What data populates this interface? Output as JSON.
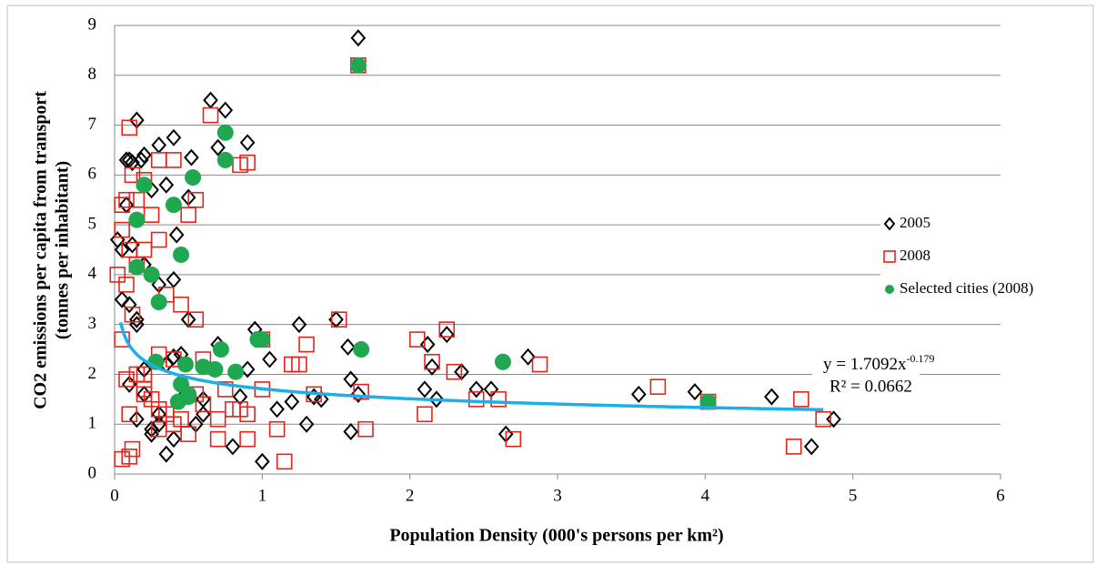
{
  "chart_data": {
    "type": "scatter",
    "x_label": "Population Density (000's persons per km²)",
    "y_label": [
      "CO2 emissions per capita from transport",
      "(tonnes per inhabitant)"
    ],
    "xlim": [
      0,
      6
    ],
    "xticks": [
      0,
      1,
      2,
      3,
      4,
      5,
      6
    ],
    "ylim": [
      0,
      9
    ],
    "yticks": [
      0,
      1,
      2,
      3,
      4,
      5,
      6,
      7,
      8,
      9
    ],
    "grid": true,
    "legend": "right",
    "series": [
      {
        "name": "2005",
        "color": "#000000",
        "marker": "diamond",
        "x": [
          0.02,
          0.05,
          0.08,
          0.1,
          0.12,
          0.15,
          0.18,
          0.2,
          0.25,
          0.3,
          0.35,
          0.4,
          0.42,
          0.5,
          0.52,
          0.65,
          0.7,
          0.75,
          0.9,
          0.08,
          0.12,
          0.15,
          0.2,
          0.3,
          0.4,
          0.5,
          0.05,
          0.1,
          0.15,
          0.2,
          0.35,
          0.4,
          0.45,
          0.3,
          0.25,
          1.65,
          1.0,
          1.05,
          1.25,
          1.5,
          1.58,
          1.6,
          1.65,
          2.1,
          2.12,
          2.15,
          2.18,
          2.25,
          2.35,
          2.45,
          2.55,
          2.65,
          2.8,
          3.55,
          3.93,
          4.45,
          4.72,
          4.87,
          1.6,
          0.8,
          0.6,
          0.7,
          0.9,
          1.1,
          1.2,
          1.3,
          1.35,
          0.35,
          0.4,
          0.25,
          0.55,
          0.15,
          0.1,
          0.45,
          0.6,
          0.85,
          1.4,
          0.95,
          0.2,
          0.3
        ],
        "values": [
          4.7,
          4.5,
          6.3,
          6.3,
          6.25,
          7.1,
          6.3,
          6.4,
          5.7,
          6.6,
          5.8,
          6.75,
          4.8,
          5.55,
          6.35,
          7.5,
          6.55,
          7.3,
          6.65,
          5.4,
          4.6,
          3.1,
          4.2,
          3.8,
          3.9,
          3.1,
          3.5,
          3.4,
          3.0,
          2.1,
          2.2,
          2.35,
          1.5,
          1.2,
          0.9,
          8.75,
          0.25,
          2.3,
          3.0,
          3.1,
          2.55,
          1.9,
          1.6,
          1.7,
          2.6,
          2.15,
          1.5,
          2.8,
          2.05,
          1.7,
          1.7,
          0.8,
          2.35,
          1.6,
          1.65,
          1.55,
          0.55,
          1.1,
          0.85,
          0.55,
          1.5,
          2.6,
          2.1,
          1.3,
          1.45,
          1.0,
          1.55,
          0.4,
          0.7,
          0.8,
          1.0,
          1.1,
          1.8,
          2.4,
          1.2,
          1.55,
          1.5,
          2.9,
          1.6,
          1.0
        ]
      },
      {
        "name": "2008",
        "color": "#e3241b",
        "marker": "square",
        "x": [
          0.02,
          0.05,
          0.08,
          0.1,
          0.12,
          0.15,
          0.2,
          0.25,
          0.3,
          0.4,
          0.5,
          0.55,
          0.65,
          0.85,
          0.9,
          0.05,
          0.1,
          0.15,
          0.2,
          0.3,
          0.35,
          0.45,
          0.55,
          0.08,
          0.12,
          0.2,
          0.3,
          0.4,
          0.05,
          0.1,
          0.2,
          0.3,
          0.4,
          0.5,
          0.6,
          0.7,
          0.8,
          0.9,
          1.0,
          1.1,
          1.15,
          1.25,
          1.35,
          1.52,
          1.65,
          1.7,
          2.05,
          2.1,
          2.15,
          2.25,
          2.3,
          2.45,
          2.6,
          2.7,
          2.88,
          3.68,
          4.02,
          4.6,
          4.65,
          4.8,
          0.05,
          0.1,
          0.2,
          0.3,
          0.45,
          0.6,
          0.75,
          0.9,
          1.0,
          1.2,
          0.25,
          0.35,
          0.15,
          0.55,
          0.7,
          0.85,
          1.3,
          1.67,
          0.08,
          0.12
        ],
        "values": [
          4.0,
          5.4,
          5.5,
          6.95,
          6.0,
          5.5,
          5.9,
          5.2,
          6.3,
          6.3,
          5.2,
          5.5,
          7.2,
          6.2,
          6.25,
          4.9,
          4.5,
          4.2,
          4.5,
          4.7,
          3.6,
          3.4,
          3.1,
          3.8,
          3.2,
          2.0,
          2.4,
          2.3,
          2.7,
          1.2,
          1.6,
          1.3,
          1.0,
          0.8,
          1.4,
          1.1,
          1.3,
          0.7,
          1.7,
          0.9,
          0.25,
          2.2,
          1.6,
          3.1,
          8.2,
          0.9,
          2.7,
          1.2,
          2.25,
          2.9,
          2.05,
          1.5,
          1.5,
          0.7,
          2.2,
          1.75,
          1.45,
          0.55,
          1.5,
          1.1,
          0.3,
          0.35,
          1.7,
          0.9,
          1.1,
          2.3,
          1.7,
          1.2,
          2.7,
          2.2,
          1.5,
          1.2,
          2.0,
          1.6,
          0.7,
          1.3,
          2.6,
          1.65,
          1.9,
          0.5
        ]
      },
      {
        "name": "Selected cities (2008)",
        "color": "#1fa84f",
        "marker": "circle",
        "x": [
          0.2,
          0.15,
          0.4,
          0.15,
          0.25,
          0.3,
          0.45,
          0.53,
          0.75,
          0.75,
          1.65,
          0.72,
          0.97,
          1.0,
          1.67,
          2.63,
          4.02,
          0.28,
          0.48,
          0.6,
          0.68,
          0.82,
          0.45,
          0.5,
          0.43,
          0.5
        ],
        "values": [
          5.8,
          5.1,
          5.4,
          4.15,
          4.0,
          3.45,
          4.4,
          5.95,
          6.85,
          6.3,
          8.2,
          2.5,
          2.7,
          2.7,
          2.5,
          2.25,
          1.45,
          2.25,
          2.2,
          2.15,
          2.1,
          2.05,
          1.8,
          1.6,
          1.45,
          1.55
        ]
      }
    ],
    "trendline": {
      "a": 1.7092,
      "b": -0.179,
      "xrange": [
        0.04,
        4.8
      ],
      "color": "#1eaee8",
      "equation": "y = 1.7092x",
      "exponent": "-0.179",
      "r2": "R² = 0.0662"
    }
  }
}
